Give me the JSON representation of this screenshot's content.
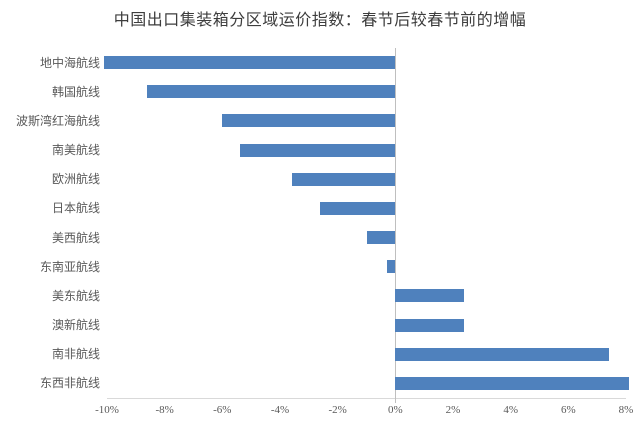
{
  "title": "中国出口集装箱分区域运价指数：春节后较春节前的增幅",
  "chart_data": {
    "type": "bar",
    "orientation": "horizontal",
    "title": "中国出口集装箱分区域运价指数：春节后较春节前的增幅",
    "categories": [
      "地中海航线",
      "韩国航线",
      "波斯湾红海航线",
      "南美航线",
      "欧洲航线",
      "日本航线",
      "美西航线",
      "东南亚航线",
      "美东航线",
      "澳新航线",
      "南非航线",
      "东西非航线"
    ],
    "values": [
      -10.1,
      -8.6,
      -6.0,
      -5.4,
      -3.6,
      -2.6,
      -1.0,
      -0.3,
      2.4,
      2.4,
      7.4,
      8.1
    ],
    "unit": "%",
    "xlim": [
      -10,
      8
    ],
    "tick_values": [
      -10,
      -8,
      -6,
      -4,
      -2,
      0,
      2,
      4,
      6,
      8
    ],
    "tick_labels": [
      "-10%",
      "-8%",
      "-6%",
      "-4%",
      "-2%",
      "0%",
      "2%",
      "4%",
      "6%",
      "8%"
    ],
    "grid": false,
    "legend": "none",
    "xlabel": "",
    "ylabel": ""
  },
  "colors": {
    "bar": "#4f81bd",
    "title_text": "#3d3d3d",
    "label_text": "#595959",
    "zero_line": "#bfbfbf",
    "baseline": "#d9d9d9",
    "background": "#ffffff"
  }
}
